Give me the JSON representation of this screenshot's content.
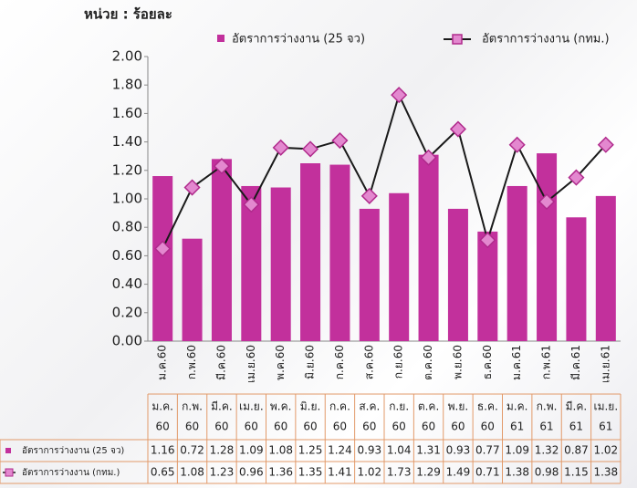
{
  "chart_data": {
    "type": "bar_line",
    "unit_label": "หน่วย : ร้อยละ",
    "categories": [
      "ม.ค.60",
      "ก.พ.60",
      "มี.ค.60",
      "เม.ย.60",
      "พ.ค.60",
      "มิ.ย.60",
      "ก.ค.60",
      "ส.ค.60",
      "ก.ย.60",
      "ต.ค.60",
      "พ.ย.60",
      "ธ.ค.60",
      "ม.ค.61",
      "ก.พ.61",
      "มี.ค.61",
      "เม.ย.61"
    ],
    "table_columns": [
      [
        "ม.ค.",
        "60"
      ],
      [
        "ก.พ.",
        "60"
      ],
      [
        "มี.ค.",
        "60"
      ],
      [
        "เม.ย.",
        "60"
      ],
      [
        "พ.ค.",
        "60"
      ],
      [
        "มิ.ย.",
        "60"
      ],
      [
        "ก.ค.",
        "60"
      ],
      [
        "ส.ค.",
        "60"
      ],
      [
        "ก.ย.",
        "60"
      ],
      [
        "ต.ค.",
        "60"
      ],
      [
        "พ.ย.",
        "60"
      ],
      [
        "ธ.ค.",
        "60"
      ],
      [
        "ม.ค.",
        "61"
      ],
      [
        "ก.พ.",
        "61"
      ],
      [
        "มี.ค.",
        "61"
      ],
      [
        "เม.ย.",
        "61"
      ]
    ],
    "series": [
      {
        "name": "อัตราการว่างงาน (25 จว)",
        "kind": "bar",
        "color": "#c2309c",
        "values": [
          1.16,
          0.72,
          1.28,
          1.09,
          1.08,
          1.25,
          1.24,
          0.93,
          1.04,
          1.31,
          0.93,
          0.77,
          1.09,
          1.32,
          0.87,
          1.02
        ]
      },
      {
        "name": "อัตราการว่างงาน (กทม.)",
        "kind": "line",
        "color": "#1a1a1a",
        "marker_color": "#e388cf",
        "values": [
          0.65,
          1.08,
          1.23,
          0.96,
          1.36,
          1.35,
          1.41,
          1.02,
          1.73,
          1.29,
          1.49,
          0.71,
          1.38,
          0.98,
          1.15,
          1.38
        ]
      }
    ],
    "ylim": [
      0,
      2
    ],
    "yticks": [
      {
        "value": 0,
        "label": "0.00"
      },
      {
        "value": 0.2,
        "label": "0.20"
      },
      {
        "value": 0.4,
        "label": "0.40"
      },
      {
        "value": 0.6,
        "label": "0.60"
      },
      {
        "value": 0.8,
        "label": "0.80"
      },
      {
        "value": 1,
        "label": "1.00"
      },
      {
        "value": 1.2,
        "label": "1.20"
      },
      {
        "value": 1.4,
        "label": "1.40"
      },
      {
        "value": 1.6,
        "label": "1.60"
      },
      {
        "value": 1.8,
        "label": "1.80"
      },
      {
        "value": 2,
        "label": "2.00"
      }
    ]
  }
}
